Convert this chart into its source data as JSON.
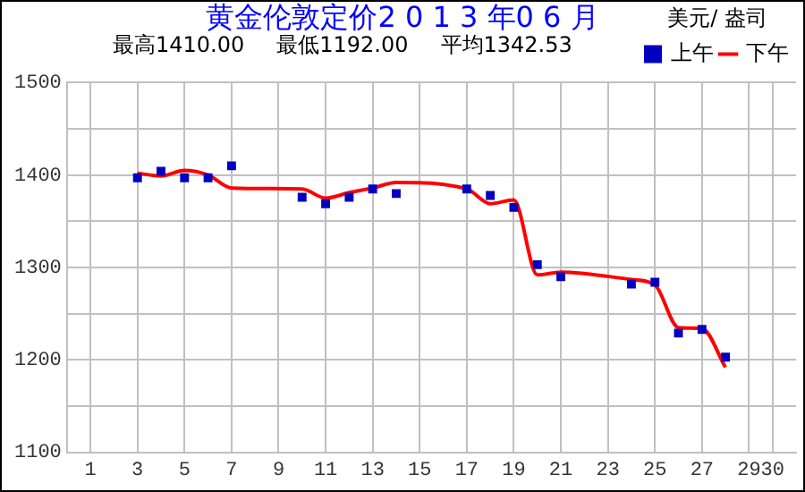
{
  "chart_data": {
    "type": "line",
    "title": "黄金伦敦定价2 0 1 3 年0 6 月",
    "ylabel": "美元/ 盎司",
    "annotations": [
      "最高1410.00",
      "最低1192.00",
      "平均1342.53"
    ],
    "xlim": [
      0,
      31
    ],
    "xticks": [
      1,
      3,
      5,
      7,
      9,
      11,
      13,
      15,
      17,
      19,
      21,
      23,
      25,
      27,
      29,
      30
    ],
    "ylim": [
      1100,
      1500
    ],
    "yticks": [
      1100,
      {
        "value": 1150,
        "label": null
      },
      1200,
      {
        "value": 1250,
        "label": null
      },
      1300,
      {
        "value": 1350,
        "label": null
      },
      1400,
      {
        "value": 1450,
        "label": null
      },
      1500
    ],
    "grid": true,
    "legend": "top right",
    "series": [
      {
        "name": "上午",
        "type": "scatter",
        "marker": "square",
        "color": "#0000c0",
        "x": [
          3,
          4,
          5,
          6,
          7,
          10,
          11,
          12,
          13,
          14,
          17,
          18,
          19,
          20,
          21,
          24,
          25,
          26,
          27,
          28
        ],
        "values": [
          1397,
          1404,
          1397,
          1397,
          1410,
          1376,
          1369,
          1376,
          1385,
          1380,
          1385,
          1378,
          1365,
          1303,
          1290,
          1282,
          1284,
          1229,
          1233,
          1203
        ]
      },
      {
        "name": "下午",
        "marker": "none",
        "color": "#ff0000",
        "x": [
          3,
          4,
          5,
          6,
          7,
          10,
          11,
          12,
          13,
          14,
          17,
          18,
          19,
          20,
          21,
          24,
          25,
          26,
          27,
          28
        ],
        "values": [
          1402,
          1399,
          1405,
          1400,
          1386,
          1385,
          1375,
          1381,
          1386,
          1392,
          1385,
          1369,
          1373,
          1292,
          1295,
          1287,
          1281,
          1235,
          1234,
          1192
        ]
      }
    ]
  }
}
